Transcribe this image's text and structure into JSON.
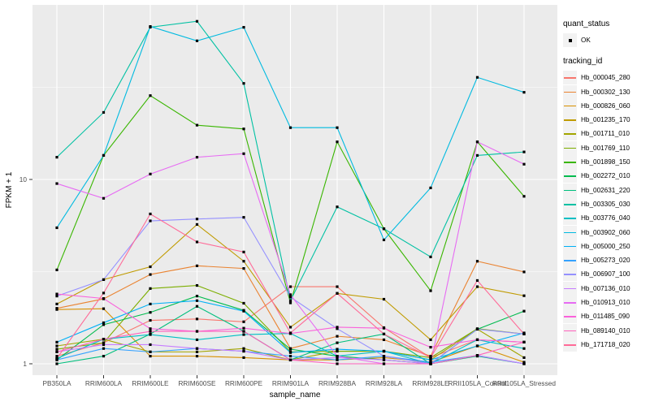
{
  "figure": {
    "panel_bg": "#EBEBEB",
    "grid_color": "#FFFFFF",
    "tick_color": "#333333",
    "tick_label_color": "#4D4D4D",
    "marker_color": "#000000"
  },
  "axes": {
    "x_title": "sample_name",
    "y_title": "FPKM + 1",
    "y_tick_labels": [
      "1",
      "10"
    ]
  },
  "legend": {
    "quant_status_title": "quant_status",
    "quant_status_items": [
      {
        "label": "OK",
        "marker": "black-square-point"
      }
    ],
    "tracking_title": "tracking_id"
  },
  "chart_data": {
    "type": "line",
    "y_scale": "log10",
    "ylim": [
      1,
      80
    ],
    "grid": "major-minor",
    "legend_position": "right",
    "xlabel": "sample_name",
    "ylabel": "FPKM + 1",
    "x_categories": [
      "PB350LA",
      "RRIM600LA",
      "RRIM600LE",
      "RRIM600SE",
      "RRIM600PE",
      "RRIM901LA",
      "RRIM928BA",
      "RRIM928LA",
      "RRIM928LE",
      "RRII105LA_Control",
      "RRII105LA_Stressed"
    ],
    "marker": {
      "shape": "square",
      "color": "#000000"
    },
    "series": [
      {
        "name": "Hb_000045_280",
        "color": "#F8766D",
        "values": [
          1.1,
          1.3,
          1.72,
          1.75,
          1.69,
          2.62,
          2.62,
          1.57,
          1.08,
          1.35,
          1.31
        ]
      },
      {
        "name": "Hb_000302_130",
        "color": "#EA8331",
        "values": [
          2.0,
          2.25,
          3.05,
          3.4,
          3.29,
          1.21,
          1.41,
          1.35,
          1.1,
          3.6,
          3.15
        ]
      },
      {
        "name": "Hb_000826_060",
        "color": "#D89000",
        "values": [
          1.97,
          1.99,
          1.1,
          1.1,
          1.08,
          1.05,
          1.05,
          1.08,
          1.02,
          1.25,
          1.02
        ]
      },
      {
        "name": "Hb_001235_170",
        "color": "#C09B00",
        "values": [
          2.11,
          2.86,
          3.36,
          5.7,
          3.6,
          1.58,
          2.41,
          2.24,
          1.35,
          2.62,
          2.34
        ]
      },
      {
        "name": "Hb_001711_010",
        "color": "#A3A500",
        "values": [
          1.25,
          1.36,
          1.16,
          1.16,
          1.21,
          1.05,
          1.17,
          1.17,
          1.05,
          1.54,
          1.08
        ]
      },
      {
        "name": "Hb_001769_110",
        "color": "#7CAE00",
        "values": [
          1.2,
          1.3,
          2.56,
          2.66,
          2.13,
          1.16,
          1.17,
          1.17,
          1.08,
          1.55,
          1.45
        ]
      },
      {
        "name": "Hb_001898_150",
        "color": "#39B600",
        "values": [
          3.23,
          13.5,
          28.5,
          19.7,
          18.8,
          2.14,
          16.0,
          5.4,
          2.49,
          16.0,
          8.1
        ]
      },
      {
        "name": "Hb_002272_010",
        "color": "#00BB4E",
        "values": [
          1.05,
          1.63,
          1.9,
          2.33,
          1.95,
          1.2,
          1.1,
          1.05,
          1.0,
          1.54,
          1.93
        ]
      },
      {
        "name": "Hb_002631_220",
        "color": "#00BF7D",
        "values": [
          1.0,
          1.1,
          1.45,
          2.05,
          1.5,
          1.05,
          1.3,
          1.45,
          1.0,
          1.1,
          1.0
        ]
      },
      {
        "name": "Hb_003305_030",
        "color": "#00C1A3",
        "values": [
          13.2,
          23.1,
          67.0,
          72.1,
          33.2,
          2.2,
          7.1,
          5.4,
          3.8,
          13.5,
          14.1
        ]
      },
      {
        "name": "Hb_003776_040",
        "color": "#00BFC4",
        "values": [
          1.07,
          1.36,
          1.44,
          1.35,
          1.44,
          1.46,
          1.1,
          1.17,
          1.0,
          1.35,
          1.21
        ]
      },
      {
        "name": "Hb_003902_060",
        "color": "#00BAE0",
        "values": [
          5.47,
          13.5,
          67.6,
          56.5,
          66.9,
          19.1,
          19.1,
          4.7,
          9.0,
          35.8,
          29.7
        ]
      },
      {
        "name": "Hb_005000_250",
        "color": "#00B0F6",
        "values": [
          1.31,
          1.67,
          2.11,
          2.2,
          1.93,
          1.15,
          1.2,
          1.17,
          1.05,
          1.25,
          1.47
        ]
      },
      {
        "name": "Hb_005273_020",
        "color": "#35A2FF",
        "values": [
          1.05,
          1.21,
          1.16,
          1.21,
          1.17,
          1.1,
          1.05,
          1.1,
          1.02,
          1.11,
          1.0
        ]
      },
      {
        "name": "Hb_006907_100",
        "color": "#9590FF",
        "values": [
          2.33,
          2.86,
          5.96,
          6.1,
          6.23,
          2.3,
          1.55,
          1.1,
          1.0,
          1.54,
          1.45
        ]
      },
      {
        "name": "Hb_007136_010",
        "color": "#C77CFF",
        "values": [
          1.16,
          1.27,
          1.27,
          1.21,
          1.17,
          1.05,
          1.08,
          1.05,
          1.0,
          1.11,
          1.0
        ]
      },
      {
        "name": "Hb_010913_010",
        "color": "#E76BF3",
        "values": [
          9.5,
          7.9,
          10.7,
          13.2,
          13.8,
          2.37,
          1.1,
          1.0,
          1.0,
          16.0,
          12.1
        ]
      },
      {
        "name": "Hb_011485_090",
        "color": "#FA62DB",
        "values": [
          2.39,
          2.26,
          1.55,
          1.5,
          1.56,
          1.46,
          1.58,
          1.56,
          1.23,
          1.35,
          1.31
        ]
      },
      {
        "name": "Hb_089140_010",
        "color": "#FF62BC",
        "values": [
          1.16,
          1.36,
          1.5,
          1.5,
          1.5,
          1.05,
          1.0,
          1.0,
          1.0,
          1.11,
          1.31
        ]
      },
      {
        "name": "Hb_171718_020",
        "color": "#FF6A98",
        "values": [
          1.07,
          2.42,
          6.5,
          4.58,
          4.04,
          1.47,
          2.41,
          1.45,
          1.08,
          2.83,
          1.45
        ]
      }
    ]
  }
}
